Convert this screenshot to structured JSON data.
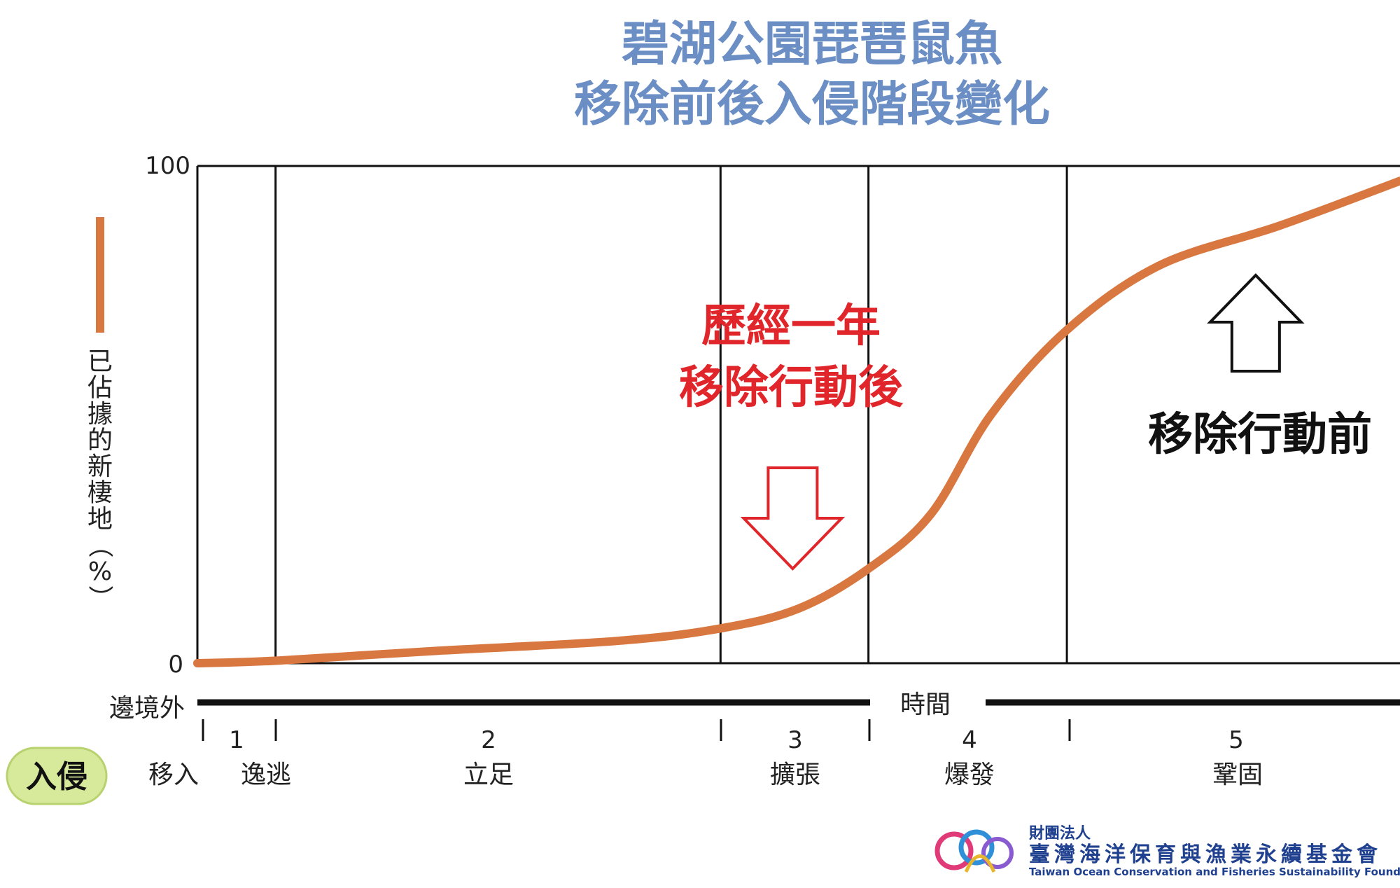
{
  "title_line1": "碧湖公園琵琶鼠魚",
  "title_line2": "移除前後入侵階段變化",
  "ylabel_chars": [
    "已",
    "佔",
    "據",
    "的",
    "新",
    "棲",
    "地",
    "（",
    "%",
    "）"
  ],
  "annotation_after": [
    "歷經一年",
    "移除行動後"
  ],
  "annotation_before": "移除行動前",
  "axis_left_word": "邊境外",
  "axis_time_word": "時間",
  "badge": "入侵",
  "stages": [
    {
      "num": "1",
      "names": [
        "移入",
        "逸逃"
      ]
    },
    {
      "num": "2",
      "names": [
        "立足"
      ]
    },
    {
      "num": "3",
      "names": [
        "擴張"
      ]
    },
    {
      "num": "4",
      "names": [
        "爆發"
      ]
    },
    {
      "num": "5",
      "names": [
        "鞏固"
      ]
    }
  ],
  "org": {
    "line1": "財團法人",
    "line2": "臺灣海洋保育與漁業永續基金會",
    "line3": "Taiwan Ocean Conservation and Fisheries Sustainability Foundation"
  },
  "colors": {
    "curve": "#d8773f",
    "title": "#6b8fc5",
    "annotation_after": "#e0262a",
    "annotation_before": "#111111",
    "badge_fill": "#d7ea9b"
  },
  "chart_data": {
    "type": "line",
    "ylim": [
      0,
      100
    ],
    "y_ticks": [
      "0",
      "100"
    ],
    "stage_boundaries": [
      0.065,
      0.435,
      0.558,
      0.723
    ],
    "x": [
      0.0,
      0.065,
      0.2,
      0.35,
      0.435,
      0.5,
      0.558,
      0.61,
      0.66,
      0.723,
      0.8,
      0.9,
      1.0
    ],
    "series": [
      {
        "values": [
          0,
          0.5,
          2.5,
          4.5,
          7,
          11,
          19,
          30,
          50,
          67,
          80,
          88,
          97
        ]
      }
    ],
    "annotations": {
      "after_arrow_x": 0.495,
      "before_arrow_x": 0.88
    }
  }
}
